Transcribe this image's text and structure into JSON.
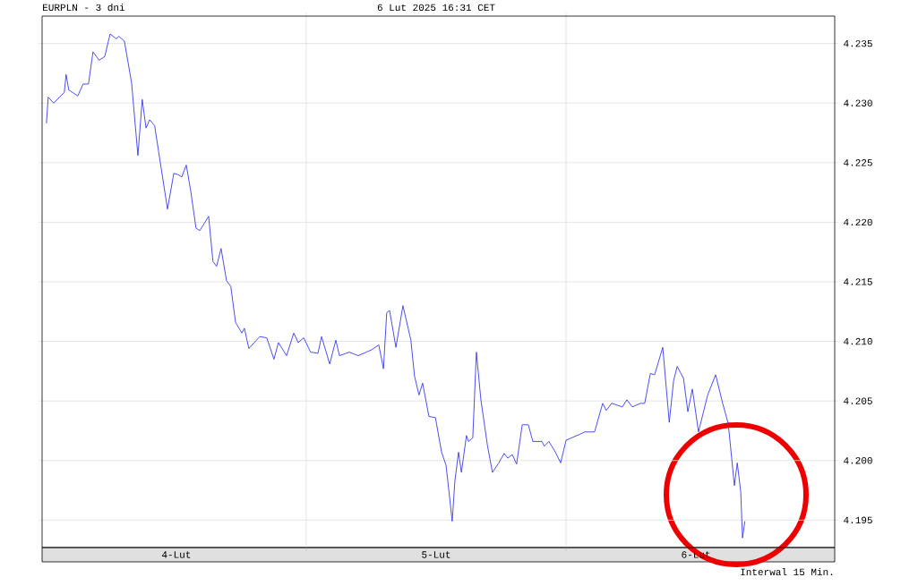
{
  "chart_data": {
    "type": "line",
    "title": "EURPLN - 3 dni",
    "subtitle": "6 Lut 2025 16:31 CET",
    "annotations": [
      "Interwal 15 Min."
    ],
    "x": [
      "2025-02-04T00:00",
      "2025-02-04T00:10",
      "2025-02-04T00:40",
      "2025-02-04T01:39",
      "2025-02-04T01:49",
      "2025-02-04T02:04",
      "2025-02-04T02:54",
      "2025-02-04T03:23",
      "2025-02-04T03:53",
      "2025-02-04T04:18",
      "2025-02-04T04:52",
      "2025-02-04T05:23",
      "2025-02-04T05:53",
      "2025-02-04T06:27",
      "2025-02-04T06:42",
      "2025-02-04T07:12",
      "2025-02-04T07:52",
      "2025-02-04T08:27",
      "2025-02-04T08:51",
      "2025-02-04T09:12",
      "2025-02-04T09:32",
      "2025-02-04T10:00",
      "2025-02-04T10:21",
      "2025-02-04T11:11",
      "2025-02-04T11:46",
      "2025-02-04T12:10",
      "2025-02-04T12:30",
      "2025-02-04T12:55",
      "2025-02-04T13:19",
      "2025-02-04T13:49",
      "2025-02-04T14:10",
      "2025-02-04T14:59",
      "2025-02-04T15:23",
      "2025-02-04T15:43",
      "2025-02-04T16:08",
      "2025-02-04T16:38",
      "2025-02-04T17:02",
      "2025-02-04T17:28",
      "2025-02-04T18:03",
      "2025-02-04T18:17",
      "2025-02-04T18:42",
      "2025-02-04T19:42",
      "2025-02-04T20:21",
      "2025-02-04T21:01",
      "2025-02-04T21:26",
      "2025-02-04T22:11",
      "2025-02-04T22:51",
      "2025-02-04T23:15",
      "2025-02-04T23:46",
      "2025-02-05T00:24",
      "2025-02-05T01:05",
      "2025-02-05T01:25",
      "2025-02-05T02:10",
      "2025-02-05T02:44",
      "2025-02-05T03:04",
      "2025-02-05T03:59",
      "2025-02-05T04:48",
      "2025-02-05T06:03",
      "2025-02-05T06:42",
      "2025-02-05T07:08",
      "2025-02-05T07:26",
      "2025-02-05T07:42",
      "2025-02-05T08:17",
      "2025-02-05T08:56",
      "2025-02-05T09:40",
      "2025-02-05T10:00",
      "2025-02-05T10:25",
      "2025-02-05T10:45",
      "2025-02-05T11:20",
      "2025-02-05T11:56",
      "2025-02-05T12:30",
      "2025-02-05T12:55",
      "2025-02-05T13:29",
      "2025-02-05T13:44",
      "2025-02-05T14:04",
      "2025-02-05T14:20",
      "2025-02-05T14:48",
      "2025-02-05T14:59",
      "2025-02-05T15:23",
      "2025-02-05T15:43",
      "2025-02-05T16:08",
      "2025-02-05T16:44",
      "2025-02-05T17:12",
      "2025-02-05T17:47",
      "2025-02-05T18:17",
      "2025-02-05T18:37",
      "2025-02-05T19:02",
      "2025-02-05T19:26",
      "2025-02-05T19:57",
      "2025-02-05T20:31",
      "2025-02-05T20:56",
      "2025-02-05T21:46",
      "2025-02-05T22:00",
      "2025-02-05T22:25",
      "2025-02-05T23:01",
      "2025-02-05T23:30",
      "2025-02-06T00:00",
      "2025-02-06T01:15",
      "2025-02-06T01:44",
      "2025-02-06T02:38",
      "2025-02-06T03:23",
      "2025-02-06T03:43",
      "2025-02-06T04:13",
      "2025-02-06T05:12",
      "2025-02-06T05:37",
      "2025-02-06T06:07",
      "2025-02-06T06:52",
      "2025-02-06T07:16",
      "2025-02-06T07:47",
      "2025-02-06T08:11",
      "2025-02-06T08:56",
      "2025-02-06T09:32",
      "2025-02-06T09:56",
      "2025-02-06T10:16",
      "2025-02-06T10:51",
      "2025-02-06T11:15",
      "2025-02-06T11:40",
      "2025-02-06T12:14",
      "2025-02-06T13:05",
      "2025-02-06T13:49",
      "2025-02-06T14:28",
      "2025-02-06T14:59",
      "2025-02-06T15:33",
      "2025-02-06T15:49",
      "2025-02-06T16:08",
      "2025-02-06T16:18",
      "2025-02-06T16:31"
    ],
    "series": [
      {
        "color": "#3a3aef",
        "values": [
          4.2283,
          4.2305,
          4.23,
          4.2309,
          4.2324,
          4.2311,
          4.2306,
          4.2316,
          4.2316,
          4.2343,
          4.2336,
          4.2339,
          4.2358,
          4.2354,
          4.2356,
          4.2352,
          4.2317,
          4.2256,
          4.2303,
          4.2279,
          4.2286,
          4.2281,
          4.226,
          4.2211,
          4.2241,
          4.224,
          4.2238,
          4.2248,
          4.2227,
          4.2195,
          4.2193,
          4.2205,
          4.2167,
          4.2163,
          4.2178,
          4.2151,
          4.2146,
          4.2116,
          4.2107,
          4.2111,
          4.2094,
          4.2104,
          4.2103,
          4.2085,
          4.2099,
          4.2088,
          4.2107,
          4.2099,
          4.2103,
          4.2091,
          4.209,
          4.2104,
          4.2081,
          4.2101,
          4.2088,
          4.2091,
          4.2088,
          4.2093,
          4.2097,
          4.2077,
          4.2124,
          4.2126,
          4.2095,
          4.213,
          4.2101,
          4.2071,
          4.2055,
          4.2065,
          4.2037,
          4.2036,
          4.2007,
          4.1996,
          4.1949,
          4.1983,
          4.2007,
          4.199,
          4.2021,
          4.2016,
          4.2019,
          4.2091,
          4.2051,
          4.2013,
          4.199,
          4.1998,
          4.2006,
          4.2002,
          4.2005,
          4.1997,
          4.203,
          4.203,
          4.2016,
          4.2016,
          4.2012,
          4.2016,
          4.2007,
          4.1998,
          4.2017,
          4.2022,
          4.2024,
          4.2024,
          4.2048,
          4.2042,
          4.2048,
          4.2045,
          4.2051,
          4.2045,
          4.2048,
          4.2048,
          4.2073,
          4.2072,
          4.2095,
          4.2032,
          4.2067,
          4.2079,
          4.2069,
          4.2041,
          4.206,
          4.2024,
          4.2055,
          4.2072,
          4.2048,
          4.2031,
          4.1979,
          4.1998,
          4.1974,
          4.1935,
          4.1949
        ]
      }
    ],
    "xlim": [
      "2025-02-03T23:36",
      "2025-02-07T00:49"
    ],
    "ylim": [
      4.1927,
      4.2373
    ],
    "xticks": [
      {
        "value": "2025-02-04T12:00",
        "label": "4-Lut"
      },
      {
        "value": "2025-02-05T00:00",
        "label": null
      },
      {
        "value": "2025-02-05T12:00",
        "label": "5-Lut"
      },
      {
        "value": "2025-02-06T00:00",
        "label": null
      },
      {
        "value": "2025-02-06T12:00",
        "label": "6-Lut"
      }
    ],
    "yticks": [
      4.195,
      {
        "value": 4.2,
        "label": "4.200"
      },
      4.205,
      {
        "value": 4.21,
        "label": "4.210"
      },
      4.215,
      {
        "value": 4.22,
        "label": "4.220"
      },
      4.225,
      {
        "value": 4.23,
        "label": "4.230"
      },
      4.235
    ],
    "grid": true,
    "marker": "none",
    "line_style": "solid"
  }
}
